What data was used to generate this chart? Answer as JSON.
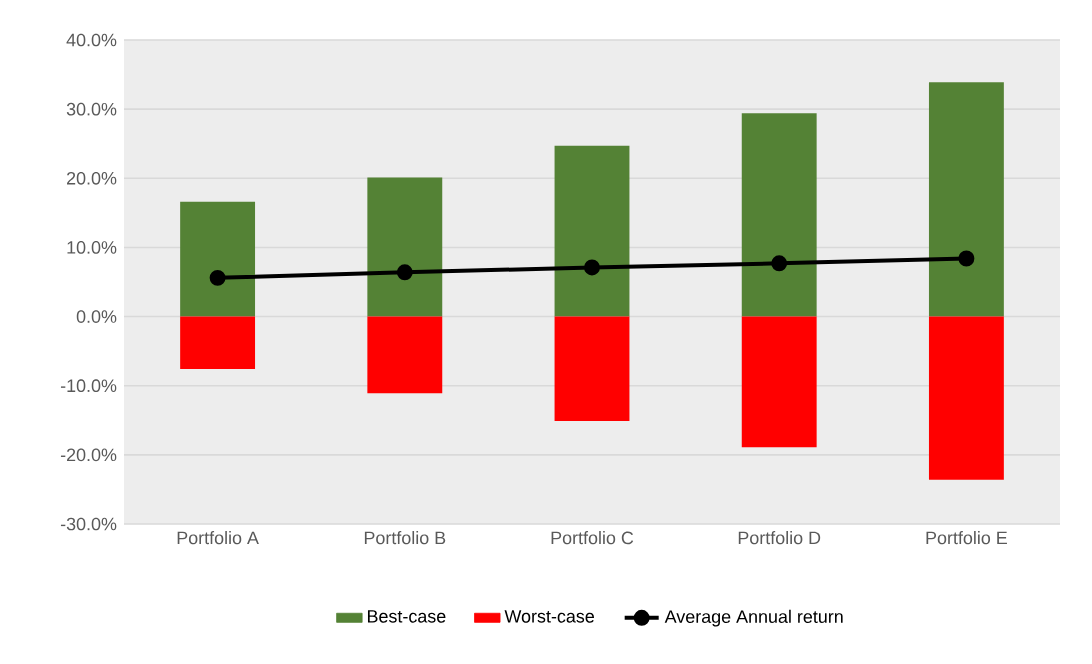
{
  "chart_data": {
    "type": "bar",
    "categories": [
      "Portfolio A",
      "Portfolio B",
      "Portfolio C",
      "Portfolio D",
      "Portfolio E"
    ],
    "series": [
      {
        "name": "Best-case",
        "color": "#548235",
        "values": [
          16.6,
          20.1,
          24.7,
          29.4,
          33.9
        ]
      },
      {
        "name": "Worst-case",
        "color": "#ff0000",
        "values": [
          -7.6,
          -11.1,
          -15.1,
          -18.9,
          -23.6
        ]
      },
      {
        "name": "Average Annual return",
        "type": "line",
        "color": "#000000",
        "marker": "circle",
        "values": [
          5.6,
          6.4,
          7.1,
          7.7,
          8.4
        ]
      }
    ],
    "ylim": [
      -30,
      40
    ],
    "yticks": [
      {
        "value": -30,
        "label": "-30.0%"
      },
      {
        "value": -20,
        "label": "-20.0%"
      },
      {
        "value": -10,
        "label": "-10.0%"
      },
      {
        "value": 0,
        "label": "0.0%"
      },
      {
        "value": 10,
        "label": "10.0%"
      },
      {
        "value": 20,
        "label": "20.0%"
      },
      {
        "value": 30,
        "label": "30.0%"
      },
      {
        "value": 40,
        "label": "40.0%"
      }
    ],
    "stacked": true,
    "grid": "y",
    "legend": "bottom"
  }
}
